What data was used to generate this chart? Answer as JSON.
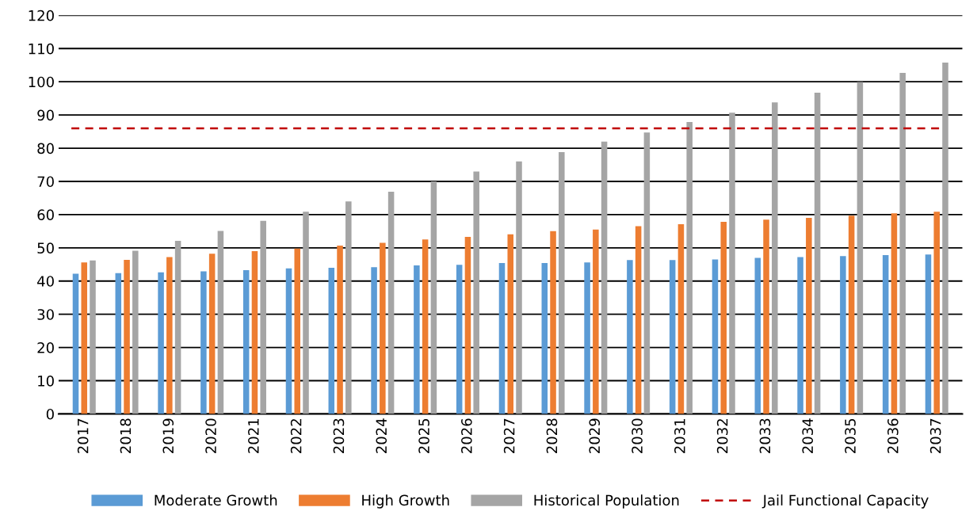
{
  "chart_data": {
    "type": "bar",
    "categories": [
      "2017",
      "2018",
      "2019",
      "2020",
      "2021",
      "2022",
      "2023",
      "2024",
      "2025",
      "2026",
      "2027",
      "2028",
      "2029",
      "2030",
      "2031",
      "2032",
      "2033",
      "2034",
      "2035",
      "2036",
      "2037"
    ],
    "series": [
      {
        "name": "Moderate Growth",
        "color": "#5b9bd5",
        "values": [
          42.2,
          42.4,
          42.6,
          42.9,
          43.3,
          43.8,
          44.0,
          44.2,
          44.7,
          44.9,
          45.4,
          45.4,
          45.6,
          46.3,
          46.3,
          46.5,
          47.0,
          47.2,
          47.5,
          47.8,
          48.0
        ]
      },
      {
        "name": "High Growth",
        "color": "#ed7d31",
        "values": [
          45.6,
          46.4,
          47.2,
          48.2,
          49.0,
          49.8,
          50.7,
          51.5,
          52.5,
          53.3,
          54.1,
          55.0,
          55.5,
          56.5,
          57.1,
          57.8,
          58.5,
          59.0,
          59.7,
          60.4,
          60.9
        ]
      },
      {
        "name": "Historical Population",
        "color": "#a5a5a5",
        "values": [
          46.2,
          49.1,
          52.1,
          55.1,
          58.1,
          60.9,
          64.0,
          66.9,
          70.0,
          73.0,
          76.0,
          78.8,
          82.0,
          84.7,
          87.9,
          90.7,
          93.8,
          96.7,
          99.9,
          102.7,
          105.8
        ]
      }
    ],
    "ref_lines": [
      {
        "axis": "y",
        "value": 86,
        "label": "Jail Functional Capacity",
        "color": "#c00000",
        "line_style": "dashed"
      }
    ],
    "ylim": [
      0,
      120
    ],
    "yticks": [
      0,
      10,
      20,
      30,
      40,
      50,
      60,
      70,
      80,
      90,
      100,
      110,
      120
    ],
    "grid": "y",
    "legend": "bottom"
  }
}
